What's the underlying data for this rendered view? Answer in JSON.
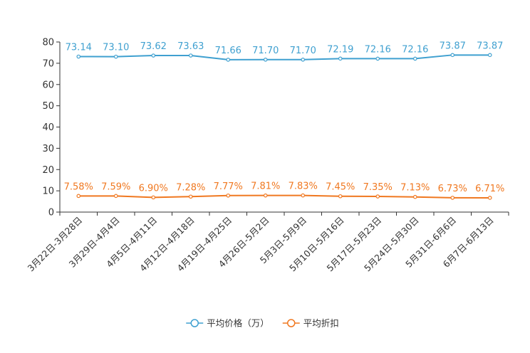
{
  "chart_data": {
    "type": "line",
    "title": "",
    "xlabel": "",
    "ylabel": "",
    "ylim": [
      0,
      80
    ],
    "yticks": [
      0,
      10,
      20,
      30,
      40,
      50,
      60,
      70,
      80
    ],
    "grid": false,
    "legend": "bottom-center",
    "categories": [
      "3月22日-3月28日",
      "3月29日-4月4日",
      "4月5日-4月11日",
      "4月12日-4月18日",
      "4月19日-4月25日",
      "4月26日-5月2日",
      "5月3日-5月9日",
      "5月10日-5月16日",
      "5月17日-5月23日",
      "5月24日-5月30日",
      "5月31日-6月6日",
      "6月7日-6月13日"
    ],
    "series": [
      {
        "name": "平均价格（万）",
        "color": "#3fa0d0",
        "values": [
          73.14,
          73.1,
          73.62,
          73.63,
          71.66,
          71.7,
          71.7,
          72.19,
          72.16,
          72.16,
          73.87,
          73.87
        ],
        "labels": [
          "73.14",
          "73.10",
          "73.62",
          "73.63",
          "71.66",
          "71.70",
          "71.70",
          "72.19",
          "72.16",
          "72.16",
          "73.87",
          "73.87"
        ]
      },
      {
        "name": "平均折扣",
        "color": "#f07820",
        "values": [
          7.58,
          7.59,
          6.9,
          7.28,
          7.77,
          7.81,
          7.83,
          7.45,
          7.35,
          7.13,
          6.73,
          6.71
        ],
        "labels": [
          "7.58%",
          "7.59%",
          "6.90%",
          "7.28%",
          "7.77%",
          "7.81%",
          "7.83%",
          "7.45%",
          "7.35%",
          "7.13%",
          "6.73%",
          "6.71%"
        ]
      }
    ]
  }
}
